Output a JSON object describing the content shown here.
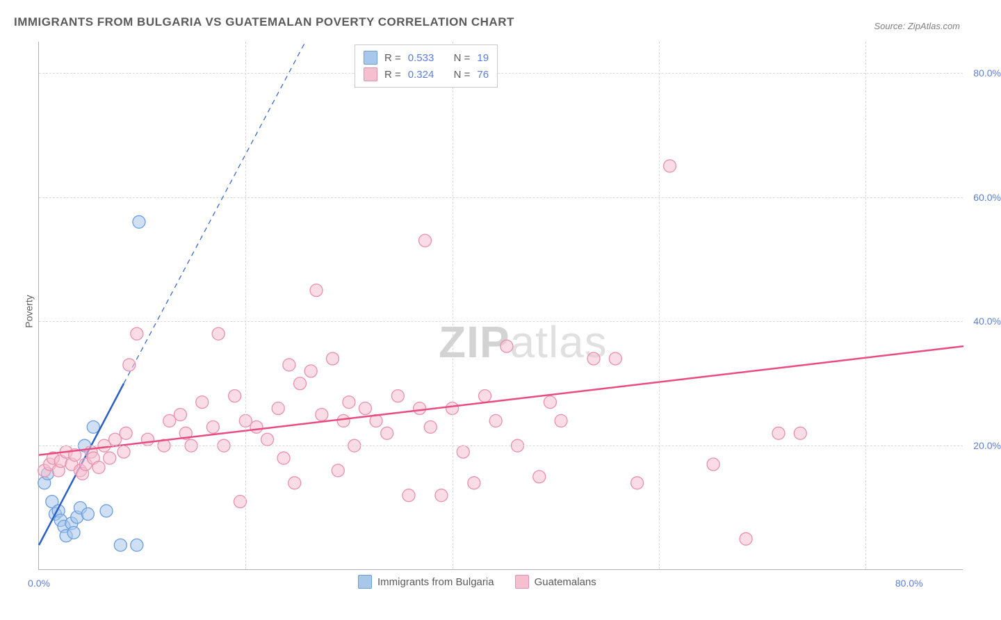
{
  "title": "IMMIGRANTS FROM BULGARIA VS GUATEMALAN POVERTY CORRELATION CHART",
  "source_text": "Source: ZipAtlas.com",
  "watermark_prefix": "ZIP",
  "watermark_suffix": "atlas",
  "ylabel": "Poverty",
  "chart": {
    "type": "scatter",
    "xlim": [
      0,
      85
    ],
    "ylim": [
      0,
      85
    ],
    "xtick_labels": [
      "0.0%",
      "80.0%"
    ],
    "xtick_at": [
      0,
      80
    ],
    "ytick_labels": [
      "20.0%",
      "40.0%",
      "60.0%",
      "80.0%"
    ],
    "ytick_at": [
      20,
      40,
      60,
      80
    ],
    "vgrid_at": [
      19,
      38,
      57,
      76
    ],
    "marker_radius": 9,
    "marker_opacity": 0.55,
    "marker_stroke_width": 1.3,
    "background_color": "#ffffff",
    "grid_color": "#d8d8d8",
    "axis_color": "#b0b0b0",
    "tick_label_color": "#5b7dd6",
    "tick_label_fontsize": 14,
    "series": [
      {
        "name": "Immigrants from Bulgaria",
        "fill_color": "#a8c7eb",
        "stroke_color": "#6a9de0",
        "line_color": "#2b5fc4",
        "line_width": 2.5,
        "trend_solid": {
          "x1": 0,
          "y1": 4,
          "x2": 7.8,
          "y2": 30
        },
        "trend_dash": {
          "x1": 7.8,
          "y1": 30,
          "x2": 24.5,
          "y2": 85
        },
        "R": "0.533",
        "N": "19",
        "points": [
          [
            0.5,
            14
          ],
          [
            0.8,
            15.5
          ],
          [
            1.2,
            11
          ],
          [
            1.5,
            9
          ],
          [
            1.8,
            9.5
          ],
          [
            2.0,
            8
          ],
          [
            2.3,
            7
          ],
          [
            2.5,
            5.5
          ],
          [
            3.0,
            7.5
          ],
          [
            3.2,
            6
          ],
          [
            3.5,
            8.5
          ],
          [
            3.8,
            10
          ],
          [
            4.2,
            20
          ],
          [
            4.5,
            9
          ],
          [
            5.0,
            23
          ],
          [
            6.2,
            9.5
          ],
          [
            7.5,
            4
          ],
          [
            9.0,
            4
          ],
          [
            9.2,
            56
          ]
        ]
      },
      {
        "name": "Guatemalans",
        "fill_color": "#f4c0cf",
        "stroke_color": "#e98fad",
        "line_color": "#e94b7f",
        "line_width": 2.5,
        "trend_solid": {
          "x1": 0,
          "y1": 18.5,
          "x2": 85,
          "y2": 36
        },
        "R": "0.324",
        "N": "76",
        "points": [
          [
            0.5,
            16
          ],
          [
            1.0,
            17
          ],
          [
            1.3,
            18
          ],
          [
            1.8,
            16
          ],
          [
            2.0,
            17.5
          ],
          [
            2.5,
            19
          ],
          [
            3.0,
            17
          ],
          [
            3.3,
            18.5
          ],
          [
            3.8,
            16
          ],
          [
            4.0,
            15.5
          ],
          [
            4.3,
            17
          ],
          [
            4.8,
            19
          ],
          [
            5.0,
            18
          ],
          [
            5.5,
            16.5
          ],
          [
            6.0,
            20
          ],
          [
            6.5,
            18
          ],
          [
            7.0,
            21
          ],
          [
            7.8,
            19
          ],
          [
            8.0,
            22
          ],
          [
            8.3,
            33
          ],
          [
            9.0,
            38
          ],
          [
            10.0,
            21
          ],
          [
            11.5,
            20
          ],
          [
            12.0,
            24
          ],
          [
            13.0,
            25
          ],
          [
            13.5,
            22
          ],
          [
            14.0,
            20
          ],
          [
            15.0,
            27
          ],
          [
            16.0,
            23
          ],
          [
            16.5,
            38
          ],
          [
            17.0,
            20
          ],
          [
            18.0,
            28
          ],
          [
            18.5,
            11
          ],
          [
            19.0,
            24
          ],
          [
            20.0,
            23
          ],
          [
            21.0,
            21
          ],
          [
            22.0,
            26
          ],
          [
            22.5,
            18
          ],
          [
            23.0,
            33
          ],
          [
            23.5,
            14
          ],
          [
            24.0,
            30
          ],
          [
            25.0,
            32
          ],
          [
            25.5,
            45
          ],
          [
            26.0,
            25
          ],
          [
            27.0,
            34
          ],
          [
            27.5,
            16
          ],
          [
            28.0,
            24
          ],
          [
            28.5,
            27
          ],
          [
            29.0,
            20
          ],
          [
            30.0,
            26
          ],
          [
            31.0,
            24
          ],
          [
            32.0,
            22
          ],
          [
            33.0,
            28
          ],
          [
            34.0,
            12
          ],
          [
            35.0,
            26
          ],
          [
            35.5,
            53
          ],
          [
            36.0,
            23
          ],
          [
            37.0,
            12
          ],
          [
            38.0,
            26
          ],
          [
            39.0,
            19
          ],
          [
            40.0,
            14
          ],
          [
            41.0,
            28
          ],
          [
            42.0,
            24
          ],
          [
            43.0,
            36
          ],
          [
            44.0,
            20
          ],
          [
            46.0,
            15
          ],
          [
            47.0,
            27
          ],
          [
            48.0,
            24
          ],
          [
            51.0,
            34
          ],
          [
            53.0,
            34
          ],
          [
            55.0,
            14
          ],
          [
            58.0,
            65
          ],
          [
            62.0,
            17
          ],
          [
            65.0,
            5
          ],
          [
            68.0,
            22
          ],
          [
            70.0,
            22
          ]
        ]
      }
    ]
  },
  "legend_top_labels": {
    "R": "R =",
    "N": "N ="
  },
  "legend_bottom_labels": [
    "Immigrants from Bulgaria",
    "Guatemalans"
  ]
}
